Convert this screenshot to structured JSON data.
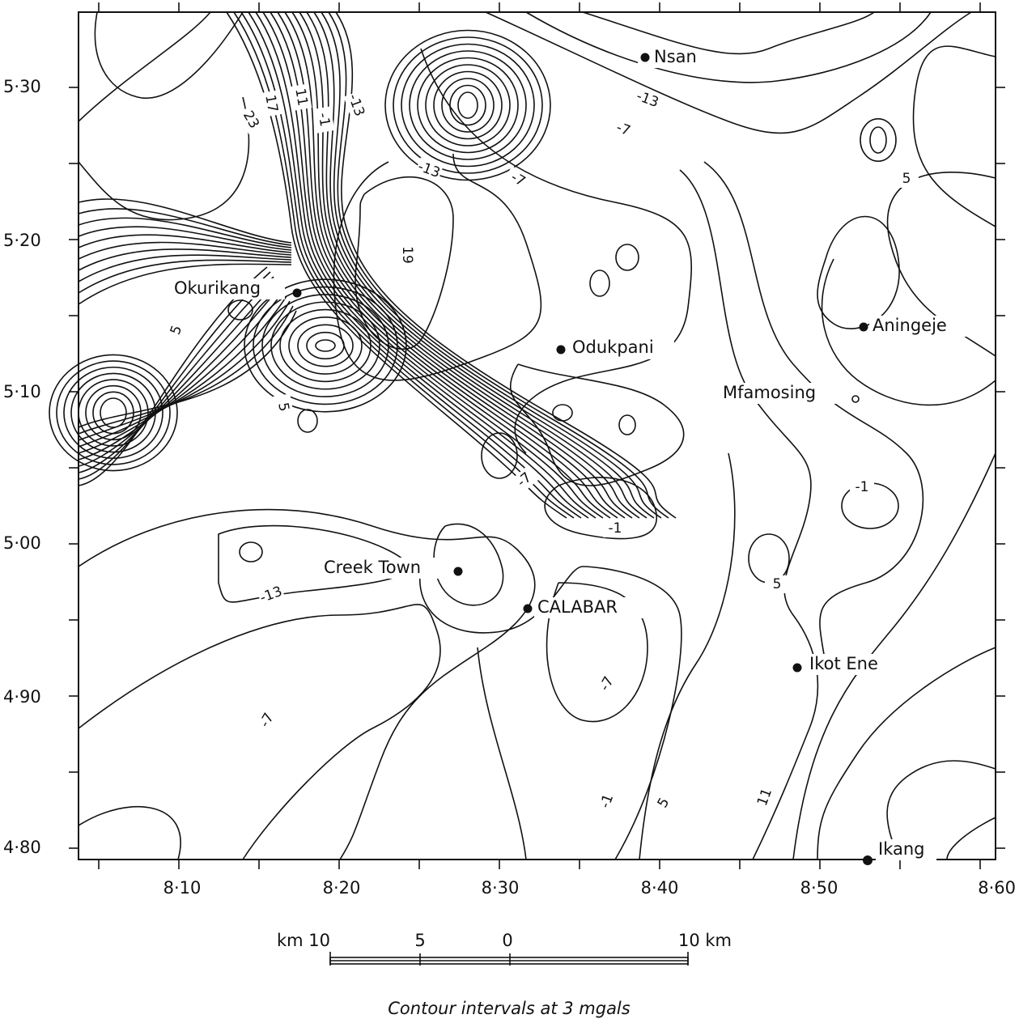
{
  "map": {
    "y_ticks": [
      "5·30",
      "5·20",
      "5·10",
      "5·00",
      "4·90",
      "4·80"
    ],
    "x_ticks": [
      "8·10",
      "8·20",
      "8·30",
      "8·40",
      "8·50",
      "8·60"
    ],
    "places": [
      "Nsan",
      "Okurikang",
      "Odukpani",
      "Aningeje",
      "Mfamosing",
      "Creek Town",
      "CALABAR",
      "Ikot Ene",
      "Ikang"
    ],
    "contour_labels": [
      "23",
      "17",
      "11",
      "-1",
      "-13",
      "-13",
      "-7",
      "-13",
      "-7",
      "5",
      "19",
      "5",
      "5",
      "-7",
      "-1",
      "-1",
      "5",
      "-13",
      "-7",
      "-7",
      "-1",
      "5",
      "11"
    ],
    "scale": {
      "left": "km 10",
      "mid": "5",
      "zero": "0",
      "right": "10 km"
    },
    "caption": "Contour intervals at 3 mgals"
  }
}
